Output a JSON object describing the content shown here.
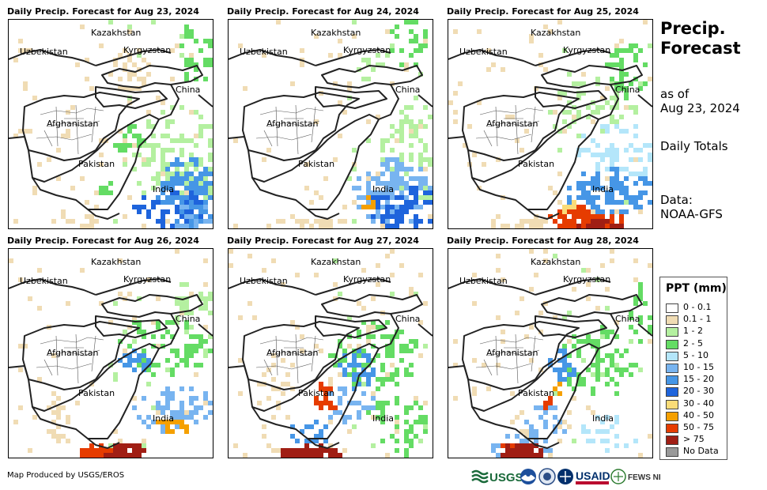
{
  "panels": [
    {
      "title": "Daily Precip. Forecast for Aug 23, 2024",
      "seed": 11,
      "pattern": "p1"
    },
    {
      "title": "Daily Precip. Forecast for Aug 24, 2024",
      "seed": 23,
      "pattern": "p2"
    },
    {
      "title": "Daily Precip. Forecast for Aug 25, 2024",
      "seed": 37,
      "pattern": "p3"
    },
    {
      "title": "Daily Precip. Forecast for Aug 26, 2024",
      "seed": 41,
      "pattern": "p4"
    },
    {
      "title": "Daily Precip. Forecast for Aug 27, 2024",
      "seed": 53,
      "pattern": "p5"
    },
    {
      "title": "Daily Precip. Forecast for Aug 28, 2024",
      "seed": 67,
      "pattern": "p6"
    }
  ],
  "map_labels": {
    "kazakhstan": "Kazakhstan",
    "uzbekistan": "Uzbekistan",
    "kyrgyzstan": "Kyrgyzstan",
    "china": "China",
    "afghanistan": "Afghanistan",
    "pakistan": "Pakistan",
    "india": "India"
  },
  "side": {
    "title_line1": "Precip.",
    "title_line2": "Forecast",
    "asof_line1": "as of",
    "asof_line2": "Aug 23, 2024",
    "totals": "Daily Totals",
    "data_line1": "Data:",
    "data_line2": "NOAA-GFS"
  },
  "legend": {
    "title": "PPT (mm)",
    "items": [
      {
        "label": "0 - 0.1",
        "color": "#ffffff"
      },
      {
        "label": "0.1 - 1",
        "color": "#f0dcb4"
      },
      {
        "label": "1 - 2",
        "color": "#b4f0a0"
      },
      {
        "label": "2 - 5",
        "color": "#64dc64"
      },
      {
        "label": "5 - 10",
        "color": "#b4e6fa"
      },
      {
        "label": "10 - 15",
        "color": "#78b4f0"
      },
      {
        "label": "15 - 20",
        "color": "#4696e6"
      },
      {
        "label": "20 - 30",
        "color": "#1e64dc"
      },
      {
        "label": "30 - 40",
        "color": "#fadc78"
      },
      {
        "label": "40 - 50",
        "color": "#f5a000"
      },
      {
        "label": "50 - 75",
        "color": "#e63c00"
      },
      {
        "label": "> 75",
        "color": "#a01e14"
      },
      {
        "label": "No Data",
        "color": "#999999"
      }
    ]
  },
  "footer": "Map Produced by USGS/EROS",
  "logos": {
    "usgs": "USGS",
    "usaid": "USAID",
    "fewsnet": "FEWS NET"
  }
}
